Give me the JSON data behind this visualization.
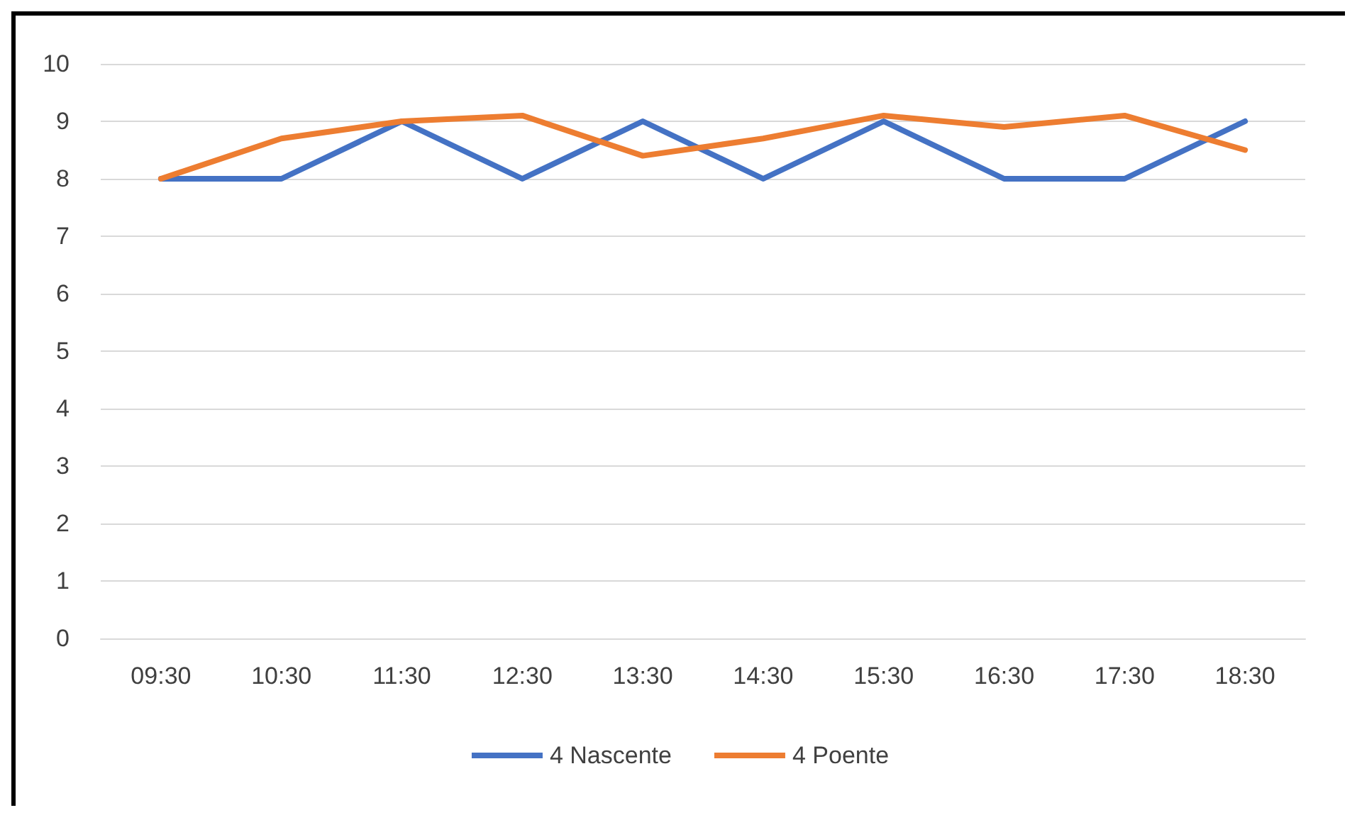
{
  "chart_data": {
    "type": "line",
    "categories": [
      "09:30",
      "10:30",
      "11:30",
      "12:30",
      "13:30",
      "14:30",
      "15:30",
      "16:30",
      "17:30",
      "18:30"
    ],
    "series": [
      {
        "name": "4 Nascente",
        "color": "#4472c4",
        "values": [
          8,
          8,
          9,
          8,
          9,
          8,
          9,
          8,
          8,
          9
        ]
      },
      {
        "name": "4 Poente",
        "color": "#ed7d31",
        "values": [
          8,
          8.7,
          9,
          9.1,
          8.4,
          8.7,
          9.1,
          8.9,
          9.1,
          8.5
        ]
      }
    ],
    "ylim": [
      0,
      10
    ],
    "yticks": [
      0,
      1,
      2,
      3,
      4,
      5,
      6,
      7,
      8,
      9,
      10
    ],
    "grid": "y",
    "legend": "bottom",
    "marker": "none",
    "line_style": "solid"
  }
}
